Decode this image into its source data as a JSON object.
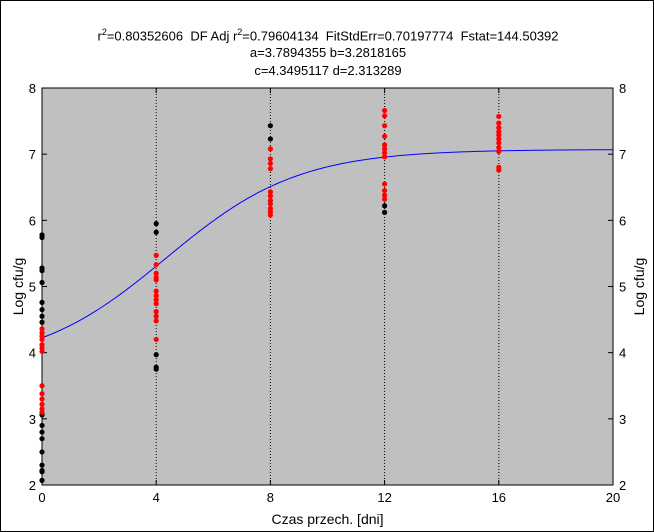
{
  "chart_data": {
    "type": "scatter",
    "header_line1": [
      "r",
      "2",
      "=0.80352606  DF Adj r",
      "2",
      "=0.79604134  FitStdErr=0.70197774  Fstat=144.50392"
    ],
    "header_line2": "a=3.7894355 b=3.2818165",
    "header_line3": "c=4.3495117 d=2.313289",
    "xlabel": "Czas przech. [dni]",
    "ylabel": "Log cfu/g",
    "ylabel_right": "Log cfu/g",
    "xlim": [
      0,
      20
    ],
    "ylim": [
      2,
      8
    ],
    "xticks": [
      "0",
      "4",
      "8",
      "12",
      "16",
      "20"
    ],
    "yticks": [
      "2",
      "3",
      "4",
      "5",
      "6",
      "7",
      "8"
    ],
    "grid": "vertical dotted at x ticks",
    "plot_background": "#c0c0c0",
    "fit_model": {
      "a": 3.7894355,
      "b": 3.2818165,
      "c": 4.3495117,
      "d": 2.313289,
      "color": "#0000ff"
    },
    "series": [
      {
        "color": "#000000",
        "points": [
          [
            0,
            5.78
          ],
          [
            0,
            5.74
          ],
          [
            0,
            5.28
          ],
          [
            0,
            5.24
          ],
          [
            0,
            5.06
          ],
          [
            0,
            4.76
          ],
          [
            0,
            4.65
          ],
          [
            0,
            4.55
          ],
          [
            0,
            4.46
          ],
          [
            0,
            3.06
          ],
          [
            0,
            2.9
          ],
          [
            0,
            2.8
          ],
          [
            0,
            2.7
          ],
          [
            0,
            2.5
          ],
          [
            0,
            2.3
          ],
          [
            0,
            2.22
          ],
          [
            0,
            2.2
          ],
          [
            0,
            2.07
          ],
          [
            4,
            5.95
          ],
          [
            4,
            5.82
          ],
          [
            4,
            3.97
          ],
          [
            4,
            3.78
          ],
          [
            4,
            3.75
          ],
          [
            8,
            7.43
          ],
          [
            8,
            7.23
          ],
          [
            12,
            6.22
          ],
          [
            12,
            6.12
          ]
        ]
      },
      {
        "color": "#ff0000",
        "points": [
          [
            0,
            4.36
          ],
          [
            0,
            4.3
          ],
          [
            0,
            4.25
          ],
          [
            0,
            4.2
          ],
          [
            0,
            4.12
          ],
          [
            0,
            4.07
          ],
          [
            0,
            4.02
          ],
          [
            0,
            3.5
          ],
          [
            0,
            3.38
          ],
          [
            0,
            3.3
          ],
          [
            0,
            3.22
          ],
          [
            0,
            3.15
          ],
          [
            0,
            3.1
          ],
          [
            4,
            5.47
          ],
          [
            4,
            5.33
          ],
          [
            4,
            5.2
          ],
          [
            4,
            5.14
          ],
          [
            4,
            5.1
          ],
          [
            4,
            4.93
          ],
          [
            4,
            4.86
          ],
          [
            4,
            4.8
          ],
          [
            4,
            4.74
          ],
          [
            4,
            4.62
          ],
          [
            4,
            4.55
          ],
          [
            4,
            4.48
          ],
          [
            4,
            4.2
          ],
          [
            8,
            7.08
          ],
          [
            8,
            6.93
          ],
          [
            8,
            6.86
          ],
          [
            8,
            6.78
          ],
          [
            8,
            6.43
          ],
          [
            8,
            6.37
          ],
          [
            8,
            6.3
          ],
          [
            8,
            6.25
          ],
          [
            8,
            6.18
          ],
          [
            8,
            6.13
          ],
          [
            8,
            6.08
          ],
          [
            12,
            7.66
          ],
          [
            12,
            7.58
          ],
          [
            12,
            7.43
          ],
          [
            12,
            7.27
          ],
          [
            12,
            7.14
          ],
          [
            12,
            7.08
          ],
          [
            12,
            7.02
          ],
          [
            12,
            6.96
          ],
          [
            12,
            6.55
          ],
          [
            12,
            6.45
          ],
          [
            12,
            6.38
          ],
          [
            12,
            6.32
          ],
          [
            16,
            7.57
          ],
          [
            16,
            7.47
          ],
          [
            16,
            7.4
          ],
          [
            16,
            7.34
          ],
          [
            16,
            7.29
          ],
          [
            16,
            7.23
          ],
          [
            16,
            7.17
          ],
          [
            16,
            7.1
          ],
          [
            16,
            7.04
          ],
          [
            16,
            6.8
          ],
          [
            16,
            6.76
          ]
        ]
      }
    ]
  }
}
